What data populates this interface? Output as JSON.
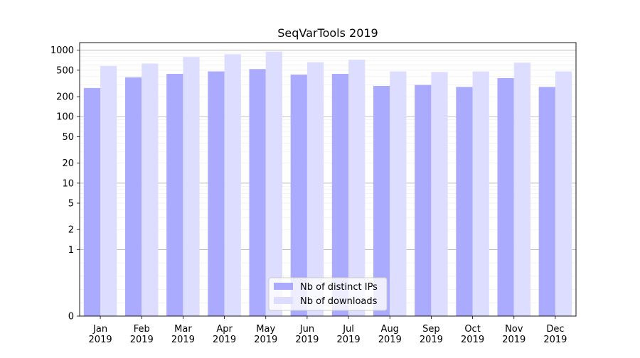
{
  "chart_data": {
    "type": "bar",
    "title": "SeqVarTools 2019",
    "xlabel": "",
    "ylabel": "",
    "yscale": "symlog",
    "ylim": [
      0,
      1300
    ],
    "yticks": [
      0,
      1,
      2,
      5,
      10,
      20,
      50,
      100,
      200,
      500,
      1000
    ],
    "ytick_labels": [
      "0",
      "1",
      "2",
      "5",
      "10",
      "20",
      "50",
      "100",
      "200",
      "500",
      "1000"
    ],
    "grid": true,
    "legend_position": "bottom-center",
    "categories": [
      [
        "Jan",
        "2019"
      ],
      [
        "Feb",
        "2019"
      ],
      [
        "Mar",
        "2019"
      ],
      [
        "Apr",
        "2019"
      ],
      [
        "May",
        "2019"
      ],
      [
        "Jun",
        "2019"
      ],
      [
        "Jul",
        "2019"
      ],
      [
        "Aug",
        "2019"
      ],
      [
        "Sep",
        "2019"
      ],
      [
        "Oct",
        "2019"
      ],
      [
        "Nov",
        "2019"
      ],
      [
        "Dec",
        "2019"
      ]
    ],
    "series": [
      {
        "name": "Nb of distinct IPs",
        "color": "#aaaaff",
        "values": [
          270,
          390,
          440,
          480,
          520,
          430,
          440,
          290,
          300,
          280,
          380,
          280
        ]
      },
      {
        "name": "Nb of downloads",
        "color": "#ddddff",
        "values": [
          580,
          630,
          790,
          870,
          950,
          660,
          720,
          480,
          470,
          480,
          650,
          480
        ]
      }
    ]
  }
}
